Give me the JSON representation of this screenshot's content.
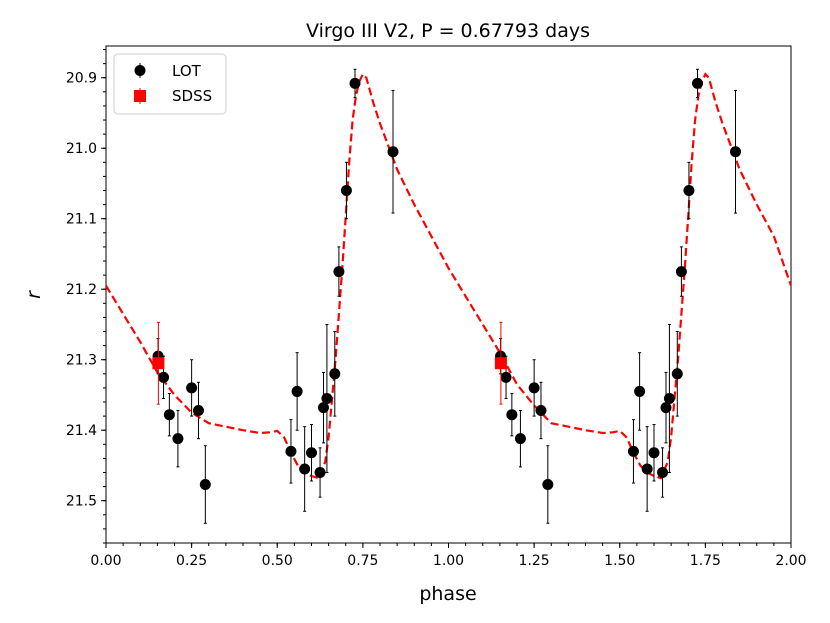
{
  "chart_data": {
    "type": "scatter",
    "title": "Virgo III V2, P = 0.67793 days",
    "xlabel": "phase",
    "ylabel": "r",
    "xlim": [
      0.0,
      2.0
    ],
    "ylim": [
      21.56,
      20.855
    ],
    "y_inverted": true,
    "x_ticks": [
      "0.00",
      "0.25",
      "0.50",
      "0.75",
      "1.00",
      "1.25",
      "1.50",
      "1.75",
      "2.00"
    ],
    "x_tick_values": [
      0.0,
      0.25,
      0.5,
      0.75,
      1.0,
      1.25,
      1.5,
      1.75,
      2.0
    ],
    "y_ticks": [
      "20.9",
      "21.0",
      "21.1",
      "21.2",
      "21.3",
      "21.4",
      "21.5"
    ],
    "y_tick_values": [
      20.9,
      21.0,
      21.1,
      21.2,
      21.3,
      21.4,
      21.5
    ],
    "legend": {
      "position": "top-left",
      "entries": [
        "LOT",
        "SDSS"
      ]
    },
    "series": [
      {
        "name": "LOT",
        "color": "#000000",
        "marker": "circle",
        "x": [
          0.152,
          0.168,
          0.185,
          0.21,
          0.25,
          0.27,
          0.29,
          0.54,
          0.558,
          0.58,
          0.6,
          0.625,
          0.635,
          0.645,
          0.668,
          0.68,
          0.702,
          0.727,
          0.838,
          1.152,
          1.168,
          1.185,
          1.21,
          1.25,
          1.27,
          1.29,
          1.54,
          1.558,
          1.58,
          1.6,
          1.625,
          1.635,
          1.645,
          1.668,
          1.68,
          1.702,
          1.727,
          1.838
        ],
        "y": [
          21.295,
          21.325,
          21.378,
          21.412,
          21.34,
          21.372,
          21.477,
          21.43,
          21.345,
          21.455,
          21.432,
          21.46,
          21.368,
          21.355,
          21.32,
          21.175,
          21.06,
          20.908,
          21.005,
          21.295,
          21.325,
          21.378,
          21.412,
          21.34,
          21.372,
          21.477,
          21.43,
          21.345,
          21.455,
          21.432,
          21.46,
          21.368,
          21.355,
          21.32,
          21.175,
          21.06,
          20.908,
          21.005
        ],
        "yerr": [
          0.025,
          0.03,
          0.03,
          0.04,
          0.04,
          0.04,
          0.055,
          0.045,
          0.055,
          0.06,
          0.04,
          0.035,
          0.05,
          0.105,
          0.06,
          0.035,
          0.04,
          0.02,
          0.087,
          0.025,
          0.03,
          0.03,
          0.04,
          0.04,
          0.04,
          0.055,
          0.045,
          0.055,
          0.06,
          0.04,
          0.035,
          0.05,
          0.105,
          0.06,
          0.035,
          0.04,
          0.02,
          0.087
        ]
      },
      {
        "name": "SDSS",
        "color": "#ff0000",
        "marker": "square",
        "x": [
          0.153,
          1.153
        ],
        "y": [
          21.305,
          21.305
        ],
        "yerr": [
          0.058,
          0.058
        ]
      }
    ],
    "template_curve": {
      "color": "#ff0000",
      "style": "dashed",
      "x": [
        0.0,
        0.05,
        0.1,
        0.15,
        0.2,
        0.25,
        0.3,
        0.35,
        0.4,
        0.45,
        0.48,
        0.5,
        0.52,
        0.54,
        0.56,
        0.58,
        0.6,
        0.62,
        0.64,
        0.65,
        0.66,
        0.67,
        0.68,
        0.69,
        0.7,
        0.71,
        0.72,
        0.73,
        0.74,
        0.75,
        0.76,
        0.78,
        0.8,
        0.85,
        0.9,
        0.95,
        1.0,
        1.05,
        1.1,
        1.15,
        1.2,
        1.25,
        1.3,
        1.35,
        1.4,
        1.45,
        1.48,
        1.5,
        1.52,
        1.54,
        1.56,
        1.58,
        1.6,
        1.62,
        1.64,
        1.65,
        1.66,
        1.67,
        1.68,
        1.69,
        1.7,
        1.71,
        1.72,
        1.73,
        1.74,
        1.75,
        1.76,
        1.78,
        1.8,
        1.85,
        1.9,
        1.95,
        2.0
      ],
      "y": [
        21.195,
        21.235,
        21.275,
        21.318,
        21.35,
        21.375,
        21.39,
        21.395,
        21.4,
        21.404,
        21.403,
        21.401,
        21.41,
        21.432,
        21.45,
        21.46,
        21.465,
        21.468,
        21.445,
        21.41,
        21.355,
        21.3,
        21.235,
        21.17,
        21.095,
        21.02,
        20.96,
        20.925,
        20.905,
        20.895,
        20.9,
        20.935,
        20.965,
        21.03,
        21.08,
        21.125,
        21.17,
        21.21,
        21.25,
        21.29,
        21.335,
        21.365,
        21.39,
        21.395,
        21.4,
        21.404,
        21.403,
        21.401,
        21.41,
        21.432,
        21.45,
        21.46,
        21.465,
        21.468,
        21.445,
        21.41,
        21.355,
        21.3,
        21.235,
        21.17,
        21.095,
        21.02,
        20.96,
        20.925,
        20.905,
        20.895,
        20.9,
        20.935,
        20.965,
        21.03,
        21.08,
        21.125,
        21.195
      ]
    }
  }
}
